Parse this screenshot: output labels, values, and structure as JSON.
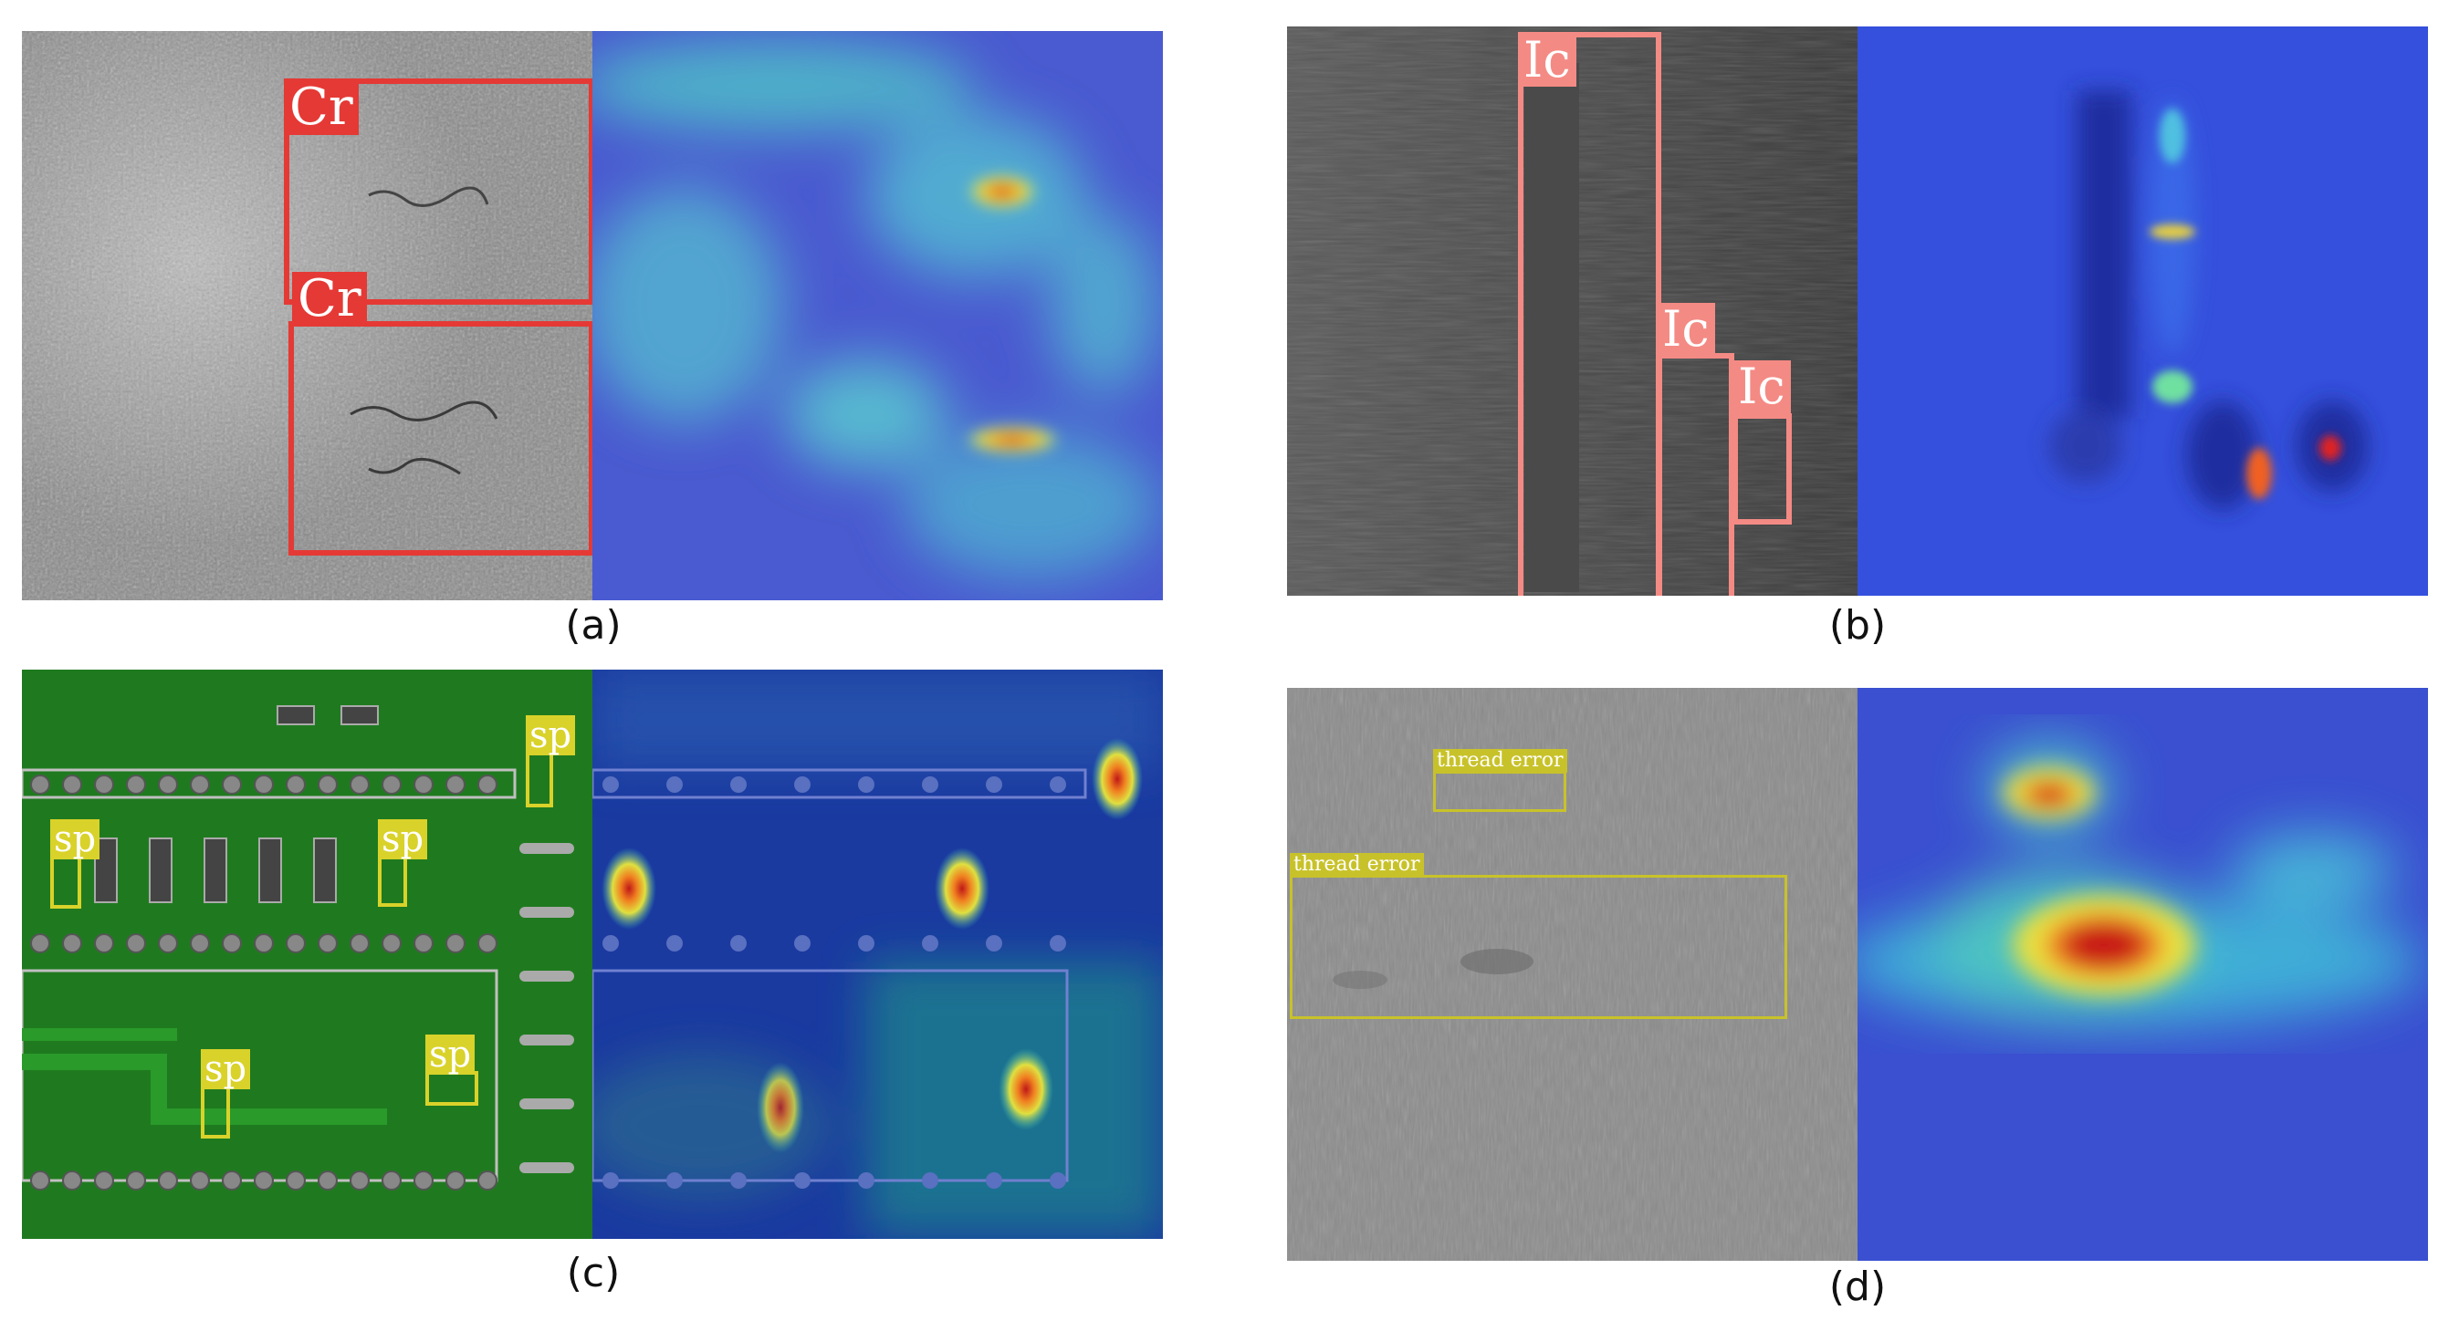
{
  "panels": {
    "a": {
      "caption": "(a)",
      "label": "Cr"
    },
    "b": {
      "caption": "(b)",
      "label": "Ic"
    },
    "c": {
      "caption": "(c)",
      "label": "sp"
    },
    "d": {
      "caption": "(d)",
      "label": "thread error"
    }
  },
  "colors": {
    "cr_box": "#e53935",
    "ic_box": "#f48a84",
    "sp_box": "#d9d22a",
    "te_box": "#c8c22a",
    "pcb_green": "#1f7a1f",
    "heat_low": "#2a3fd6",
    "heat_high": "#e01010"
  }
}
